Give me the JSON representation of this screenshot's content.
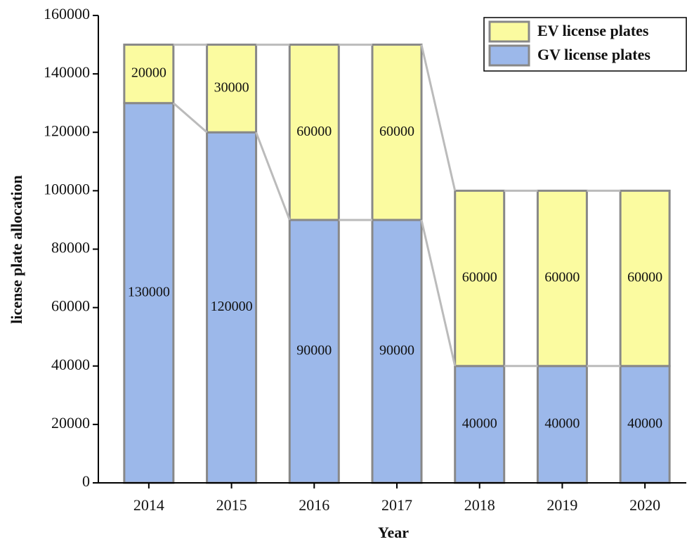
{
  "chart_data": {
    "type": "stacked_bar",
    "xlabel": "Year",
    "ylabel": "license plate allocation",
    "categories": [
      "2014",
      "2015",
      "2016",
      "2017",
      "2018",
      "2019",
      "2020"
    ],
    "series": [
      {
        "name": "GV license plates",
        "color": "#9cb8ea",
        "values": [
          130000,
          120000,
          90000,
          90000,
          40000,
          40000,
          40000
        ]
      },
      {
        "name": "EV license plates",
        "color": "#fbfba0",
        "values": [
          20000,
          30000,
          60000,
          60000,
          60000,
          60000,
          60000
        ]
      }
    ],
    "ylim": [
      0,
      160000
    ],
    "yticks": [
      0,
      20000,
      40000,
      60000,
      80000,
      100000,
      120000,
      140000,
      160000
    ],
    "legend_position": "upper right"
  }
}
